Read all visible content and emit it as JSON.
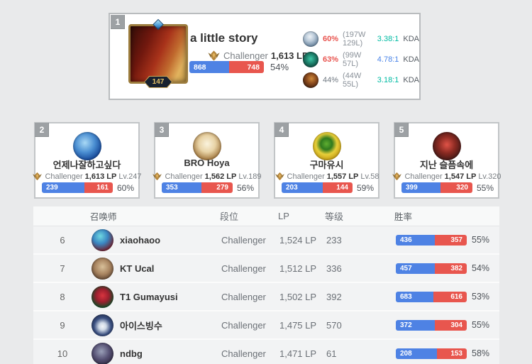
{
  "colors": {
    "win_blue": "#4e82e4",
    "loss_red": "#e8564e",
    "accent_red": "#e8544f",
    "kda_teal": "#00bba3",
    "kda_blue": "#4a84e8"
  },
  "featured": {
    "rank": "1",
    "name": "a little story",
    "tier": "Challenger",
    "lp": "1,613 LP",
    "summoner_level": "147",
    "wins": 868,
    "losses": 748,
    "win_rate": "54%",
    "champion_stats": [
      {
        "win_rate": "60%",
        "wr_tone": "red",
        "record": "(197W 129L)",
        "kda": "3.38:1",
        "kda_tone": "teal",
        "kda_label": "KDA"
      },
      {
        "win_rate": "63%",
        "wr_tone": "red",
        "record": "(99W 57L)",
        "kda": "4.78:1",
        "kda_tone": "blue",
        "kda_label": "KDA"
      },
      {
        "win_rate": "44%",
        "wr_tone": "gray",
        "record": "(44W 55L)",
        "kda": "3.18:1",
        "kda_tone": "teal",
        "kda_label": "KDA"
      }
    ]
  },
  "cards": [
    {
      "rank": "2",
      "name": "언제나잘하고싶다",
      "tier": "Challenger",
      "lp": "1,613 LP",
      "level": "Lv.247",
      "wins": 239,
      "losses": 161,
      "win_rate": "60%"
    },
    {
      "rank": "3",
      "name": "BRO Hoya",
      "tier": "Challenger",
      "lp": "1,562 LP",
      "level": "Lv.189",
      "wins": 353,
      "losses": 279,
      "win_rate": "56%"
    },
    {
      "rank": "4",
      "name": "구마유시",
      "tier": "Challenger",
      "lp": "1,557 LP",
      "level": "Lv.58",
      "wins": 203,
      "losses": 144,
      "win_rate": "59%"
    },
    {
      "rank": "5",
      "name": "지난 슬픔속에",
      "tier": "Challenger",
      "lp": "1,547 LP",
      "level": "Lv.320",
      "wins": 399,
      "losses": 320,
      "win_rate": "55%"
    }
  ],
  "table": {
    "headers": {
      "summoner": "召唤师",
      "tier": "段位",
      "lp": "LP",
      "level": "等级",
      "win_rate": "胜率"
    },
    "rows": [
      {
        "rank": "6",
        "name": "xiaohaoo",
        "tier": "Challenger",
        "lp": "1,524 LP",
        "level": "233",
        "wins": 436,
        "losses": 357,
        "win_rate": "55%"
      },
      {
        "rank": "7",
        "name": "KT Ucal",
        "tier": "Challenger",
        "lp": "1,512 LP",
        "level": "336",
        "wins": 457,
        "losses": 382,
        "win_rate": "54%"
      },
      {
        "rank": "8",
        "name": "T1 Gumayusi",
        "tier": "Challenger",
        "lp": "1,502 LP",
        "level": "392",
        "wins": 683,
        "losses": 616,
        "win_rate": "53%"
      },
      {
        "rank": "9",
        "name": "아이스빙수",
        "tier": "Challenger",
        "lp": "1,475 LP",
        "level": "570",
        "wins": 372,
        "losses": 304,
        "win_rate": "55%"
      },
      {
        "rank": "10",
        "name": "ndbg",
        "tier": "Challenger",
        "lp": "1,471 LP",
        "level": "61",
        "wins": 208,
        "losses": 153,
        "win_rate": "58%"
      }
    ]
  }
}
